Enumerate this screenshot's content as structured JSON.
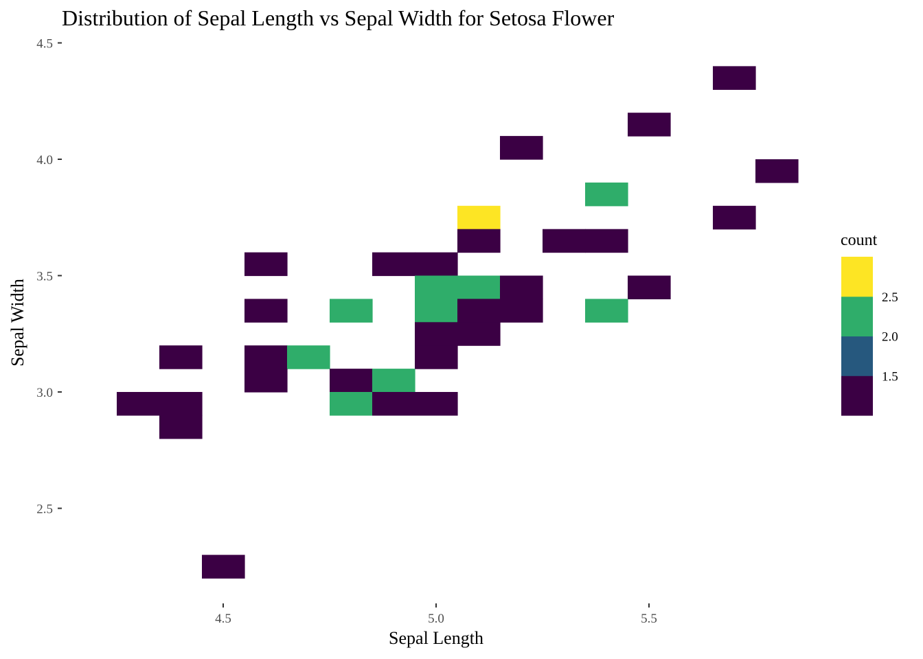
{
  "chart_data": {
    "type": "heatmap",
    "title": "Distribution of Sepal Length vs Sepal Width for Setosa Flower",
    "xlabel": "Sepal Length",
    "ylabel": "Sepal Width",
    "xlim": [
      4.16,
      5.94
    ],
    "ylim": [
      2.1,
      4.5
    ],
    "x_ticks": [
      4.5,
      5.0,
      5.5
    ],
    "x_tick_labels": [
      "4.5",
      "5.0",
      "5.5"
    ],
    "y_ticks": [
      2.5,
      3.0,
      3.5,
      4.0,
      4.5
    ],
    "y_tick_labels": [
      "2.5",
      "3.0",
      "3.5",
      "4.0",
      "4.5"
    ],
    "grid": false,
    "bin_width": {
      "x": 0.1,
      "y": 0.1
    },
    "color_scale": "viridis",
    "legend": {
      "title": "count",
      "position": "right",
      "tick_labels": [
        "1.5",
        "2.0",
        "2.5"
      ],
      "bands": [
        {
          "range": [
            1.0,
            1.5
          ],
          "color": "#3b0044"
        },
        {
          "range": [
            1.5,
            2.0
          ],
          "color": "#26587e"
        },
        {
          "range": [
            2.0,
            2.5
          ],
          "color": "#2fad6a"
        },
        {
          "range": [
            2.5,
            3.0
          ],
          "color": "#fde524"
        }
      ]
    },
    "bins": [
      {
        "x": 5.7,
        "y": 4.35,
        "count": 1
      },
      {
        "x": 5.5,
        "y": 4.15,
        "count": 1
      },
      {
        "x": 5.2,
        "y": 4.05,
        "count": 1
      },
      {
        "x": 5.8,
        "y": 3.95,
        "count": 1
      },
      {
        "x": 5.4,
        "y": 3.85,
        "count": 2
      },
      {
        "x": 5.1,
        "y": 3.75,
        "count": 3
      },
      {
        "x": 5.7,
        "y": 3.75,
        "count": 1
      },
      {
        "x": 5.1,
        "y": 3.65,
        "count": 1
      },
      {
        "x": 5.3,
        "y": 3.65,
        "count": 1
      },
      {
        "x": 5.4,
        "y": 3.65,
        "count": 1
      },
      {
        "x": 4.6,
        "y": 3.55,
        "count": 1
      },
      {
        "x": 4.9,
        "y": 3.55,
        "count": 1
      },
      {
        "x": 5.0,
        "y": 3.55,
        "count": 1
      },
      {
        "x": 5.0,
        "y": 3.45,
        "count": 2
      },
      {
        "x": 5.1,
        "y": 3.45,
        "count": 2
      },
      {
        "x": 5.2,
        "y": 3.45,
        "count": 1
      },
      {
        "x": 5.5,
        "y": 3.45,
        "count": 1
      },
      {
        "x": 4.6,
        "y": 3.35,
        "count": 1
      },
      {
        "x": 4.8,
        "y": 3.35,
        "count": 2
      },
      {
        "x": 5.0,
        "y": 3.35,
        "count": 2
      },
      {
        "x": 5.1,
        "y": 3.35,
        "count": 1
      },
      {
        "x": 5.2,
        "y": 3.35,
        "count": 1
      },
      {
        "x": 5.4,
        "y": 3.35,
        "count": 2
      },
      {
        "x": 5.0,
        "y": 3.25,
        "count": 1
      },
      {
        "x": 5.1,
        "y": 3.25,
        "count": 1
      },
      {
        "x": 4.4,
        "y": 3.15,
        "count": 1
      },
      {
        "x": 4.6,
        "y": 3.15,
        "count": 1
      },
      {
        "x": 4.7,
        "y": 3.15,
        "count": 2
      },
      {
        "x": 5.0,
        "y": 3.15,
        "count": 1
      },
      {
        "x": 4.6,
        "y": 3.05,
        "count": 1
      },
      {
        "x": 4.8,
        "y": 3.05,
        "count": 1
      },
      {
        "x": 4.9,
        "y": 3.05,
        "count": 2
      },
      {
        "x": 4.3,
        "y": 2.95,
        "count": 1
      },
      {
        "x": 4.4,
        "y": 2.95,
        "count": 1
      },
      {
        "x": 4.8,
        "y": 2.95,
        "count": 2
      },
      {
        "x": 4.9,
        "y": 2.95,
        "count": 1
      },
      {
        "x": 5.0,
        "y": 2.95,
        "count": 1
      },
      {
        "x": 4.4,
        "y": 2.85,
        "count": 1
      },
      {
        "x": 4.5,
        "y": 2.25,
        "count": 1
      }
    ]
  }
}
